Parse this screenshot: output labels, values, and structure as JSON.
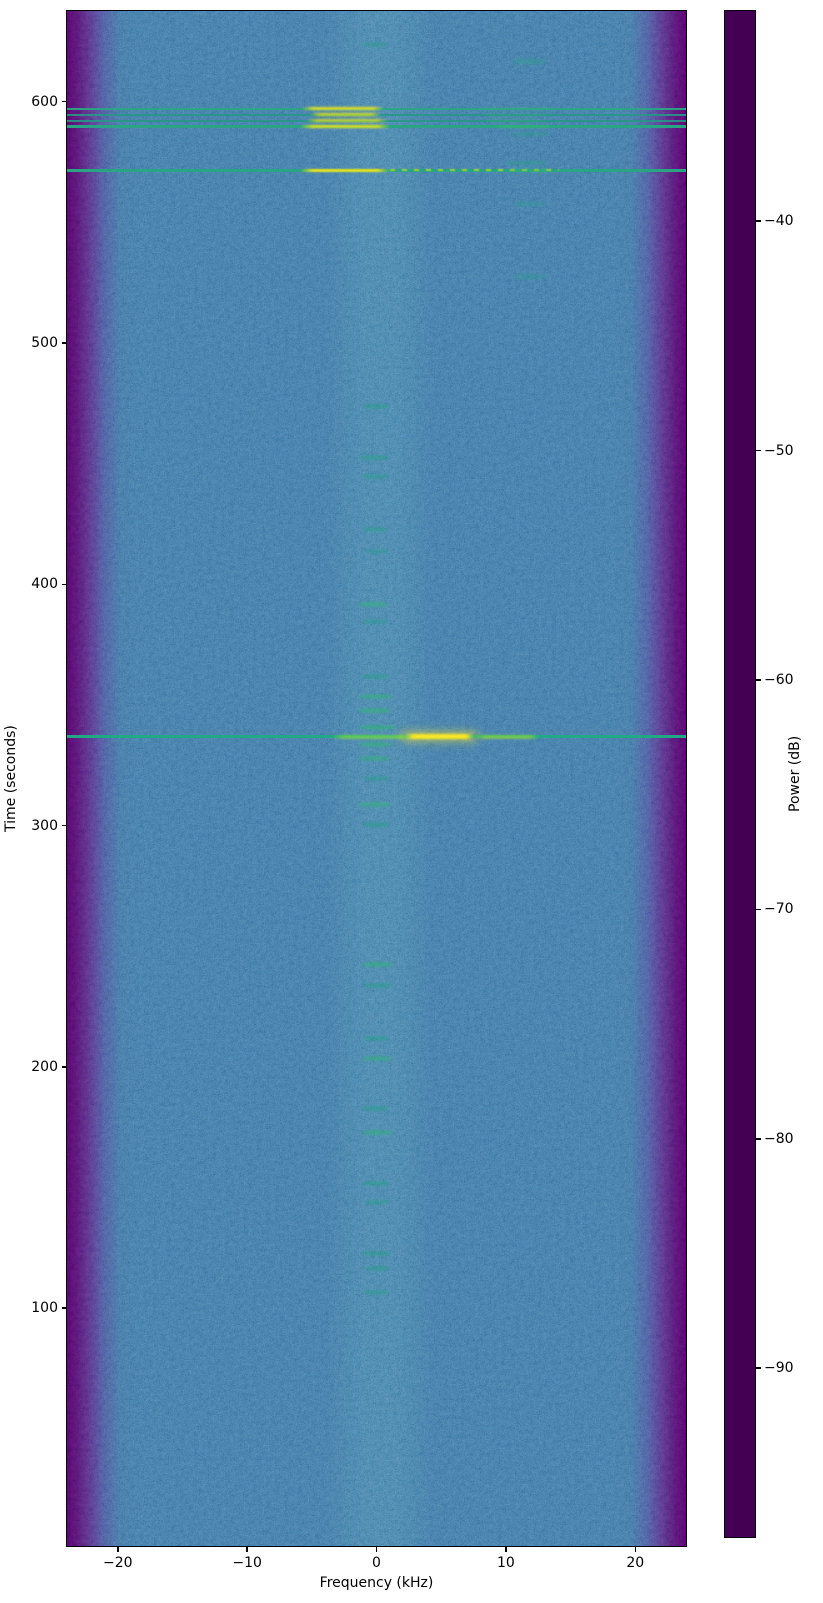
{
  "chart_data": {
    "type": "heatmap",
    "subtype": "spectrogram",
    "title": "",
    "xlabel": "Frequency (kHz)",
    "ylabel": "Time (seconds)",
    "colorbar_label": "Power (dB)",
    "colormap": "viridis",
    "x_range_khz": [
      -24,
      24
    ],
    "y_range_s": [
      1,
      638
    ],
    "power_range_db": [
      -97.4,
      -30.8
    ],
    "background_power_db": -78,
    "edge_rolloff": {
      "start_khz": 21,
      "floor_db": -95
    },
    "grid": false,
    "x_ticks": [
      {
        "v": -20,
        "label": "−20"
      },
      {
        "v": -10,
        "label": "−10"
      },
      {
        "v": 0,
        "label": "0"
      },
      {
        "v": 10,
        "label": "10"
      },
      {
        "v": 20,
        "label": "20"
      }
    ],
    "y_ticks": [
      {
        "v": 100,
        "label": "100"
      },
      {
        "v": 200,
        "label": "200"
      },
      {
        "v": 300,
        "label": "300"
      },
      {
        "v": 400,
        "label": "400"
      },
      {
        "v": 500,
        "label": "500"
      },
      {
        "v": 600,
        "label": "600"
      }
    ],
    "colorbar_ticks": [
      {
        "v": -40,
        "label": "−40"
      },
      {
        "v": -50,
        "label": "−50"
      },
      {
        "v": -60,
        "label": "−60"
      },
      {
        "v": -70,
        "label": "−70"
      },
      {
        "v": -80,
        "label": "−80"
      },
      {
        "v": -90,
        "label": "−90"
      }
    ],
    "viridis_stops": [
      "#440154",
      "#482475",
      "#414487",
      "#355f8d",
      "#2a788e",
      "#21918c",
      "#22a884",
      "#44bf70",
      "#7ad151",
      "#bddf26",
      "#fde725"
    ],
    "features": {
      "horizontal_lines": [
        {
          "t": 597.5,
          "h": 2.2,
          "color": "#2aa584",
          "op": 0.95,
          "segments": [
            {
              "f0": -5.8,
              "f1": 0.5,
              "color": "#f2e61d",
              "blur": 1,
              "op": 0.95,
              "h": 3
            },
            {
              "f0": 7.5,
              "f1": 14,
              "color": "#35b779",
              "blur": 1.3,
              "op": 0.4,
              "h": 2.4
            }
          ]
        },
        {
          "t": 595.0,
          "h": 2.0,
          "color": "#279887",
          "op": 0.9,
          "segments": [
            {
              "f0": -5.2,
              "f1": 0.3,
              "color": "#e7e41a",
              "blur": 1,
              "op": 0.85,
              "h": 2.6
            },
            {
              "f0": 8,
              "f1": 13.5,
              "color": "#35b779",
              "blur": 1.3,
              "op": 0.35,
              "h": 2.4
            }
          ]
        },
        {
          "t": 592.6,
          "h": 2.0,
          "color": "#279887",
          "op": 0.9,
          "segments": [
            {
              "f0": -5.5,
              "f1": 0.8,
              "color": "#e7e41a",
              "blur": 1,
              "op": 0.8,
              "h": 2.6
            },
            {
              "f0": 8,
              "f1": 13,
              "color": "#35b779",
              "blur": 1.3,
              "op": 0.35,
              "h": 2.4
            }
          ]
        },
        {
          "t": 590.2,
          "h": 2.6,
          "color": "#2aa584",
          "op": 1,
          "segments": [
            {
              "f0": -6,
              "f1": 1,
              "color": "#f2e61d",
              "blur": 1,
              "op": 0.95,
              "h": 3.2
            },
            {
              "f0": 9,
              "f1": 13.5,
              "color": "#3bbf78",
              "blur": 1.3,
              "op": 0.45,
              "h": 2.6
            }
          ]
        },
        {
          "t": 572.0,
          "h": 2.6,
          "color": "#2aa584",
          "op": 1,
          "segments": [
            {
              "f0": -6,
              "f1": 1,
              "color": "#f6e51c",
              "blur": 0.9,
              "op": 0.95,
              "h": 3.2
            },
            {
              "f0": 1,
              "f1": 14,
              "color": "#d8e21a",
              "blur": 0.6,
              "op": 0.7,
              "h": 2.4,
              "dashed": true
            },
            {
              "f0": 10,
              "f1": 13.5,
              "color": "#35b779",
              "blur": 1.6,
              "op": 0.45,
              "h": 3.4
            }
          ]
        },
        {
          "t": 337.3,
          "h": 3.6,
          "color": "#22a884",
          "op": 1,
          "segments": [
            {
              "f0": -3.5,
              "f1": 2.8,
              "color": "#7ad151",
              "blur": 1,
              "op": 0.8,
              "h": 4
            },
            {
              "f0": 2,
              "f1": 7.6,
              "color": "#fde725",
              "blur": 1,
              "op": 1,
              "h": 4.6,
              "glow": true
            },
            {
              "f0": 7.6,
              "f1": 12.5,
              "color": "#a0da39",
              "blur": 1,
              "op": 0.65,
              "h": 4
            }
          ]
        }
      ],
      "center_bursts": [
        {
          "t": 624,
          "f": -0.2,
          "w": 2.0,
          "i": 0.45
        },
        {
          "t": 474,
          "f": -0.1,
          "w": 2.2,
          "i": 0.5
        },
        {
          "t": 453,
          "f": -0.3,
          "w": 2.4,
          "i": 0.5
        },
        {
          "t": 445,
          "f": -0.2,
          "w": 2.2,
          "i": 0.45
        },
        {
          "t": 423,
          "f": -0.2,
          "w": 2.0,
          "i": 0.45
        },
        {
          "t": 414,
          "f": -0.1,
          "w": 1.8,
          "i": 0.4
        },
        {
          "t": 392,
          "f": -0.3,
          "w": 2.4,
          "i": 0.55
        },
        {
          "t": 385,
          "f": -0.2,
          "w": 2.0,
          "i": 0.45
        },
        {
          "t": 362,
          "f": -0.2,
          "w": 2.2,
          "i": 0.5
        },
        {
          "t": 354,
          "f": -0.1,
          "w": 2.6,
          "i": 0.6
        },
        {
          "t": 348,
          "f": -0.2,
          "w": 2.6,
          "i": 0.6
        },
        {
          "t": 341,
          "f": 0.0,
          "w": 2.8,
          "i": 0.65
        },
        {
          "t": 334,
          "f": -0.1,
          "w": 2.6,
          "i": 0.6
        },
        {
          "t": 328,
          "f": -0.2,
          "w": 2.4,
          "i": 0.55
        },
        {
          "t": 320,
          "f": -0.1,
          "w": 2.0,
          "i": 0.45
        },
        {
          "t": 309,
          "f": -0.2,
          "w": 2.6,
          "i": 0.55
        },
        {
          "t": 301,
          "f": -0.1,
          "w": 2.2,
          "i": 0.5
        },
        {
          "t": 243,
          "f": 0.0,
          "w": 2.6,
          "i": 0.55
        },
        {
          "t": 234,
          "f": 0.0,
          "w": 2.4,
          "i": 0.5
        },
        {
          "t": 212,
          "f": -0.1,
          "w": 2.2,
          "i": 0.5
        },
        {
          "t": 204,
          "f": 0.0,
          "w": 2.4,
          "i": 0.55
        },
        {
          "t": 183,
          "f": -0.1,
          "w": 2.2,
          "i": 0.5
        },
        {
          "t": 173,
          "f": 0.0,
          "w": 2.4,
          "i": 0.55
        },
        {
          "t": 152,
          "f": -0.1,
          "w": 2.2,
          "i": 0.5
        },
        {
          "t": 144,
          "f": 0.0,
          "w": 2.0,
          "i": 0.45
        },
        {
          "t": 123,
          "f": -0.1,
          "w": 2.4,
          "i": 0.5
        },
        {
          "t": 117,
          "f": 0.0,
          "w": 2.0,
          "i": 0.45
        },
        {
          "t": 107,
          "f": -0.1,
          "w": 2.2,
          "i": 0.45
        }
      ],
      "side_bursts": [
        {
          "t": 617,
          "f": 11.7,
          "w": 2.6,
          "i": 0.5
        },
        {
          "t": 587,
          "f": 11.8,
          "w": 3.0,
          "i": 0.45
        },
        {
          "t": 575,
          "f": 11.5,
          "w": 3.4,
          "i": 0.55
        },
        {
          "t": 558,
          "f": 11.7,
          "w": 2.6,
          "i": 0.45
        },
        {
          "t": 528,
          "f": 11.8,
          "w": 2.6,
          "i": 0.4
        }
      ]
    },
    "colors": {
      "figure_background": "#ffffff",
      "plot_background": "#34648d",
      "edge_band": "#440458",
      "line_teal": "#2aa584",
      "hot_yellow": "#fde725",
      "axis_text": "#000000"
    }
  }
}
